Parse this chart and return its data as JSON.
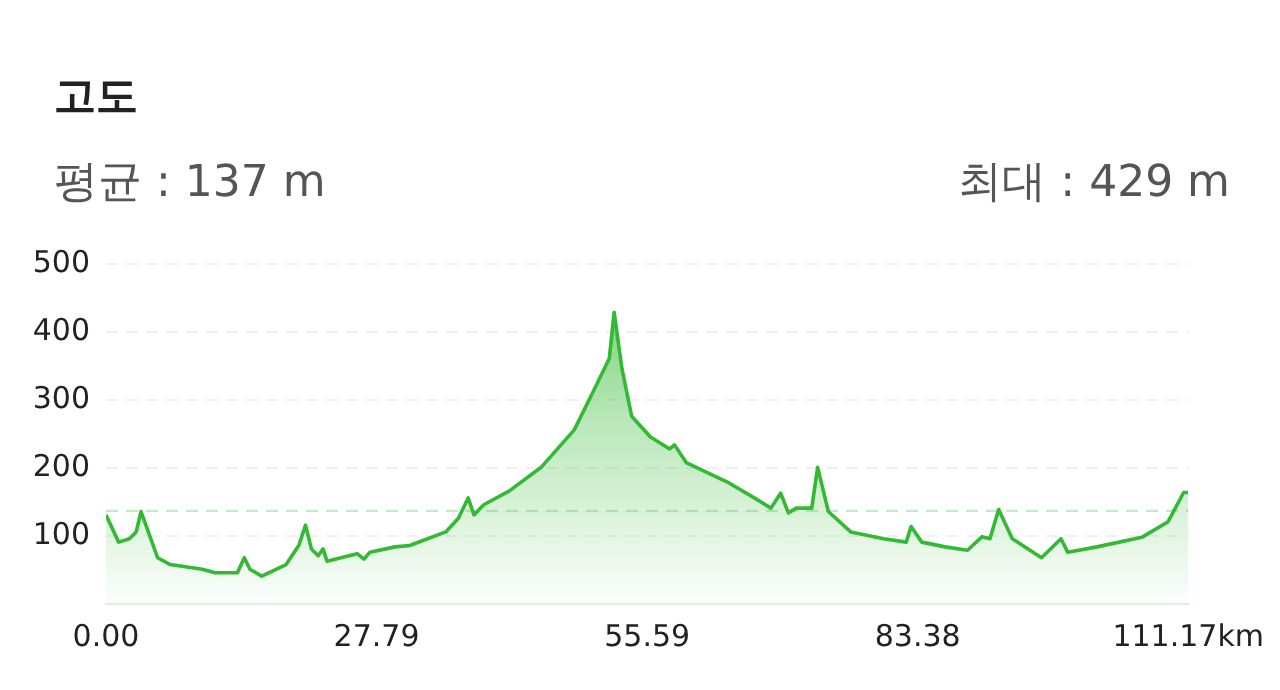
{
  "chart_data": {
    "type": "area",
    "title": "고도",
    "annotations": [
      "평균 : 137 m",
      "최대 : 429 m"
    ],
    "xlim": [
      0,
      111.17
    ],
    "xticks": [
      {
        "value": 0,
        "label": "0.00"
      },
      27.79,
      55.59,
      83.38,
      {
        "value": 111.17,
        "label": "111.17km"
      }
    ],
    "ylim": [
      0,
      500
    ],
    "yticks": [
      100,
      200,
      300,
      400,
      500
    ],
    "grid": "y",
    "marker": "none",
    "line_style": "solid",
    "ref_lines": [
      {
        "axis": "y",
        "value": 137,
        "color": "#c4ecc4",
        "line_style": "dashed"
      }
    ],
    "series": [
      {
        "color": "#34b934",
        "x": [
          0,
          1.3,
          2.4,
          3.1,
          3.6,
          5.3,
          6.6,
          9.9,
          11.2,
          13.5,
          14.2,
          14.8,
          16.0,
          18.5,
          19.8,
          20.5,
          21.1,
          21.8,
          22.3,
          22.7,
          25.8,
          26.5,
          27.1,
          29.7,
          31.2,
          34.9,
          36.2,
          37.2,
          37.8,
          38.8,
          41.4,
          44.7,
          48.1,
          50.0,
          51.7,
          52.2,
          53.0,
          54.0,
          55.9,
          57.9,
          58.4,
          59.6,
          64.0,
          66.6,
          68.3,
          69.3,
          70.1,
          70.9,
          72.5,
          73.1,
          74.2,
          76.5,
          79.9,
          82.2,
          82.7,
          83.8,
          86.2,
          88.5,
          90.0,
          90.8,
          91.7,
          93.1,
          96.1,
          98.1,
          98.8,
          101.8,
          106.4,
          109.1,
          110.7,
          111.17
        ],
        "values": [
          131,
          91,
          96,
          106,
          136,
          68,
          58,
          51,
          46,
          46,
          68,
          51,
          41,
          58,
          86,
          116,
          81,
          71,
          81,
          63,
          74,
          66,
          76,
          84,
          86,
          106,
          126,
          156,
          131,
          146,
          166,
          201,
          256,
          311,
          361,
          429,
          346,
          276,
          246,
          228,
          234,
          208,
          178,
          156,
          141,
          163,
          134,
          141,
          141,
          201,
          136,
          106,
          96,
          91,
          114,
          91,
          84,
          79,
          99,
          96,
          139,
          96,
          68,
          96,
          76,
          84,
          98,
          121,
          164,
          164
        ]
      }
    ]
  }
}
